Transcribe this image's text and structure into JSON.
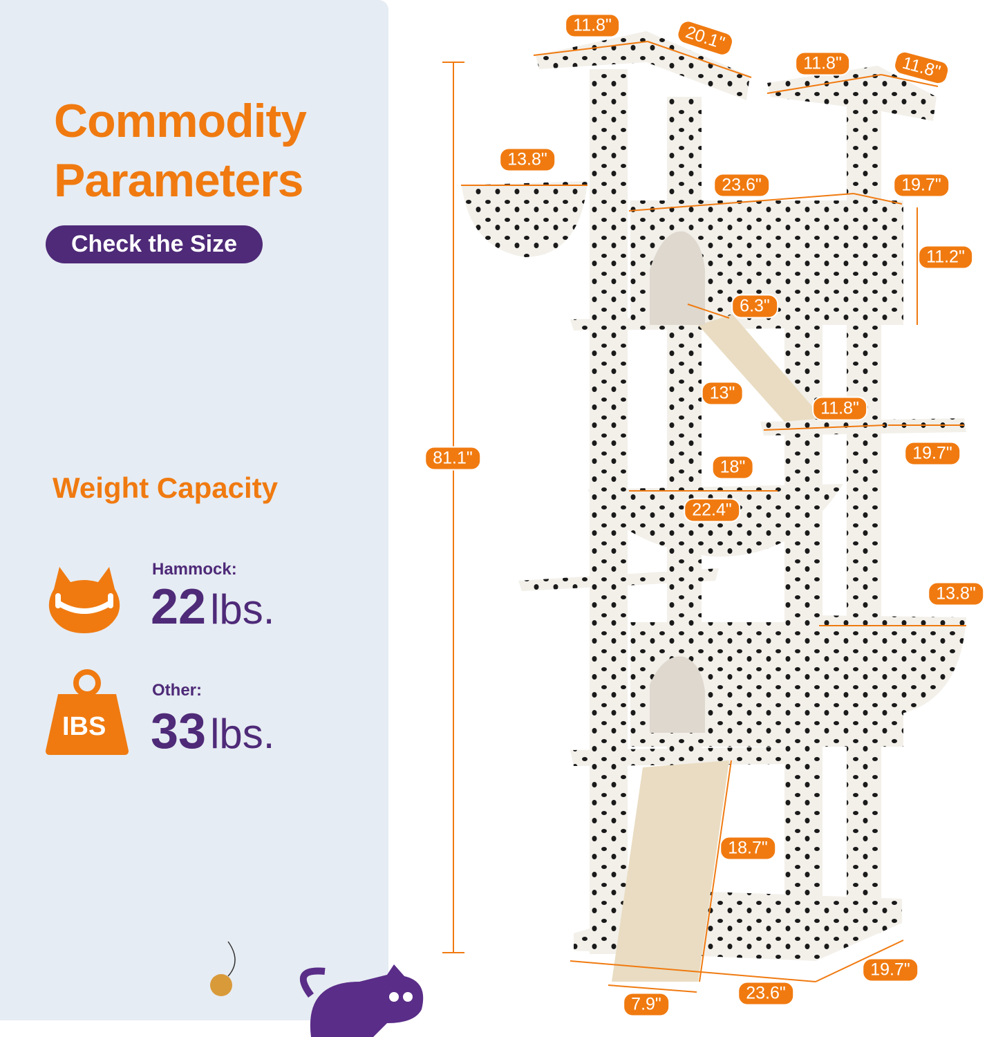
{
  "header": {
    "title_line1": "Commodity",
    "title_line2": "Parameters",
    "badge": "Check the Size"
  },
  "weight": {
    "heading": "Weight Capacity",
    "items": [
      {
        "label": "Hammock:",
        "value": "22",
        "unit": "lbs.",
        "icon": "cat-hammock-icon"
      },
      {
        "label": "Other:",
        "value": "33",
        "unit": "lbs.",
        "icon": "weight-icon",
        "icon_text": "IBS"
      }
    ]
  },
  "dimensions": [
    "11.8\"",
    "20.1\"",
    "11.8\"",
    "11.8\"",
    "13.8\"",
    "23.6\"",
    "19.7\"",
    "11.2\"",
    "6.3\"",
    "13\"",
    "11.8\"",
    "19.7\"",
    "81.1\"",
    "18\"",
    "22.4\"",
    "13.8\"",
    "18.7\"",
    "19.7\"",
    "23.6\"",
    "7.9\""
  ],
  "colors": {
    "accent": "#f07a10",
    "brand": "#4e2a78",
    "panel": "#e6ecf3"
  }
}
